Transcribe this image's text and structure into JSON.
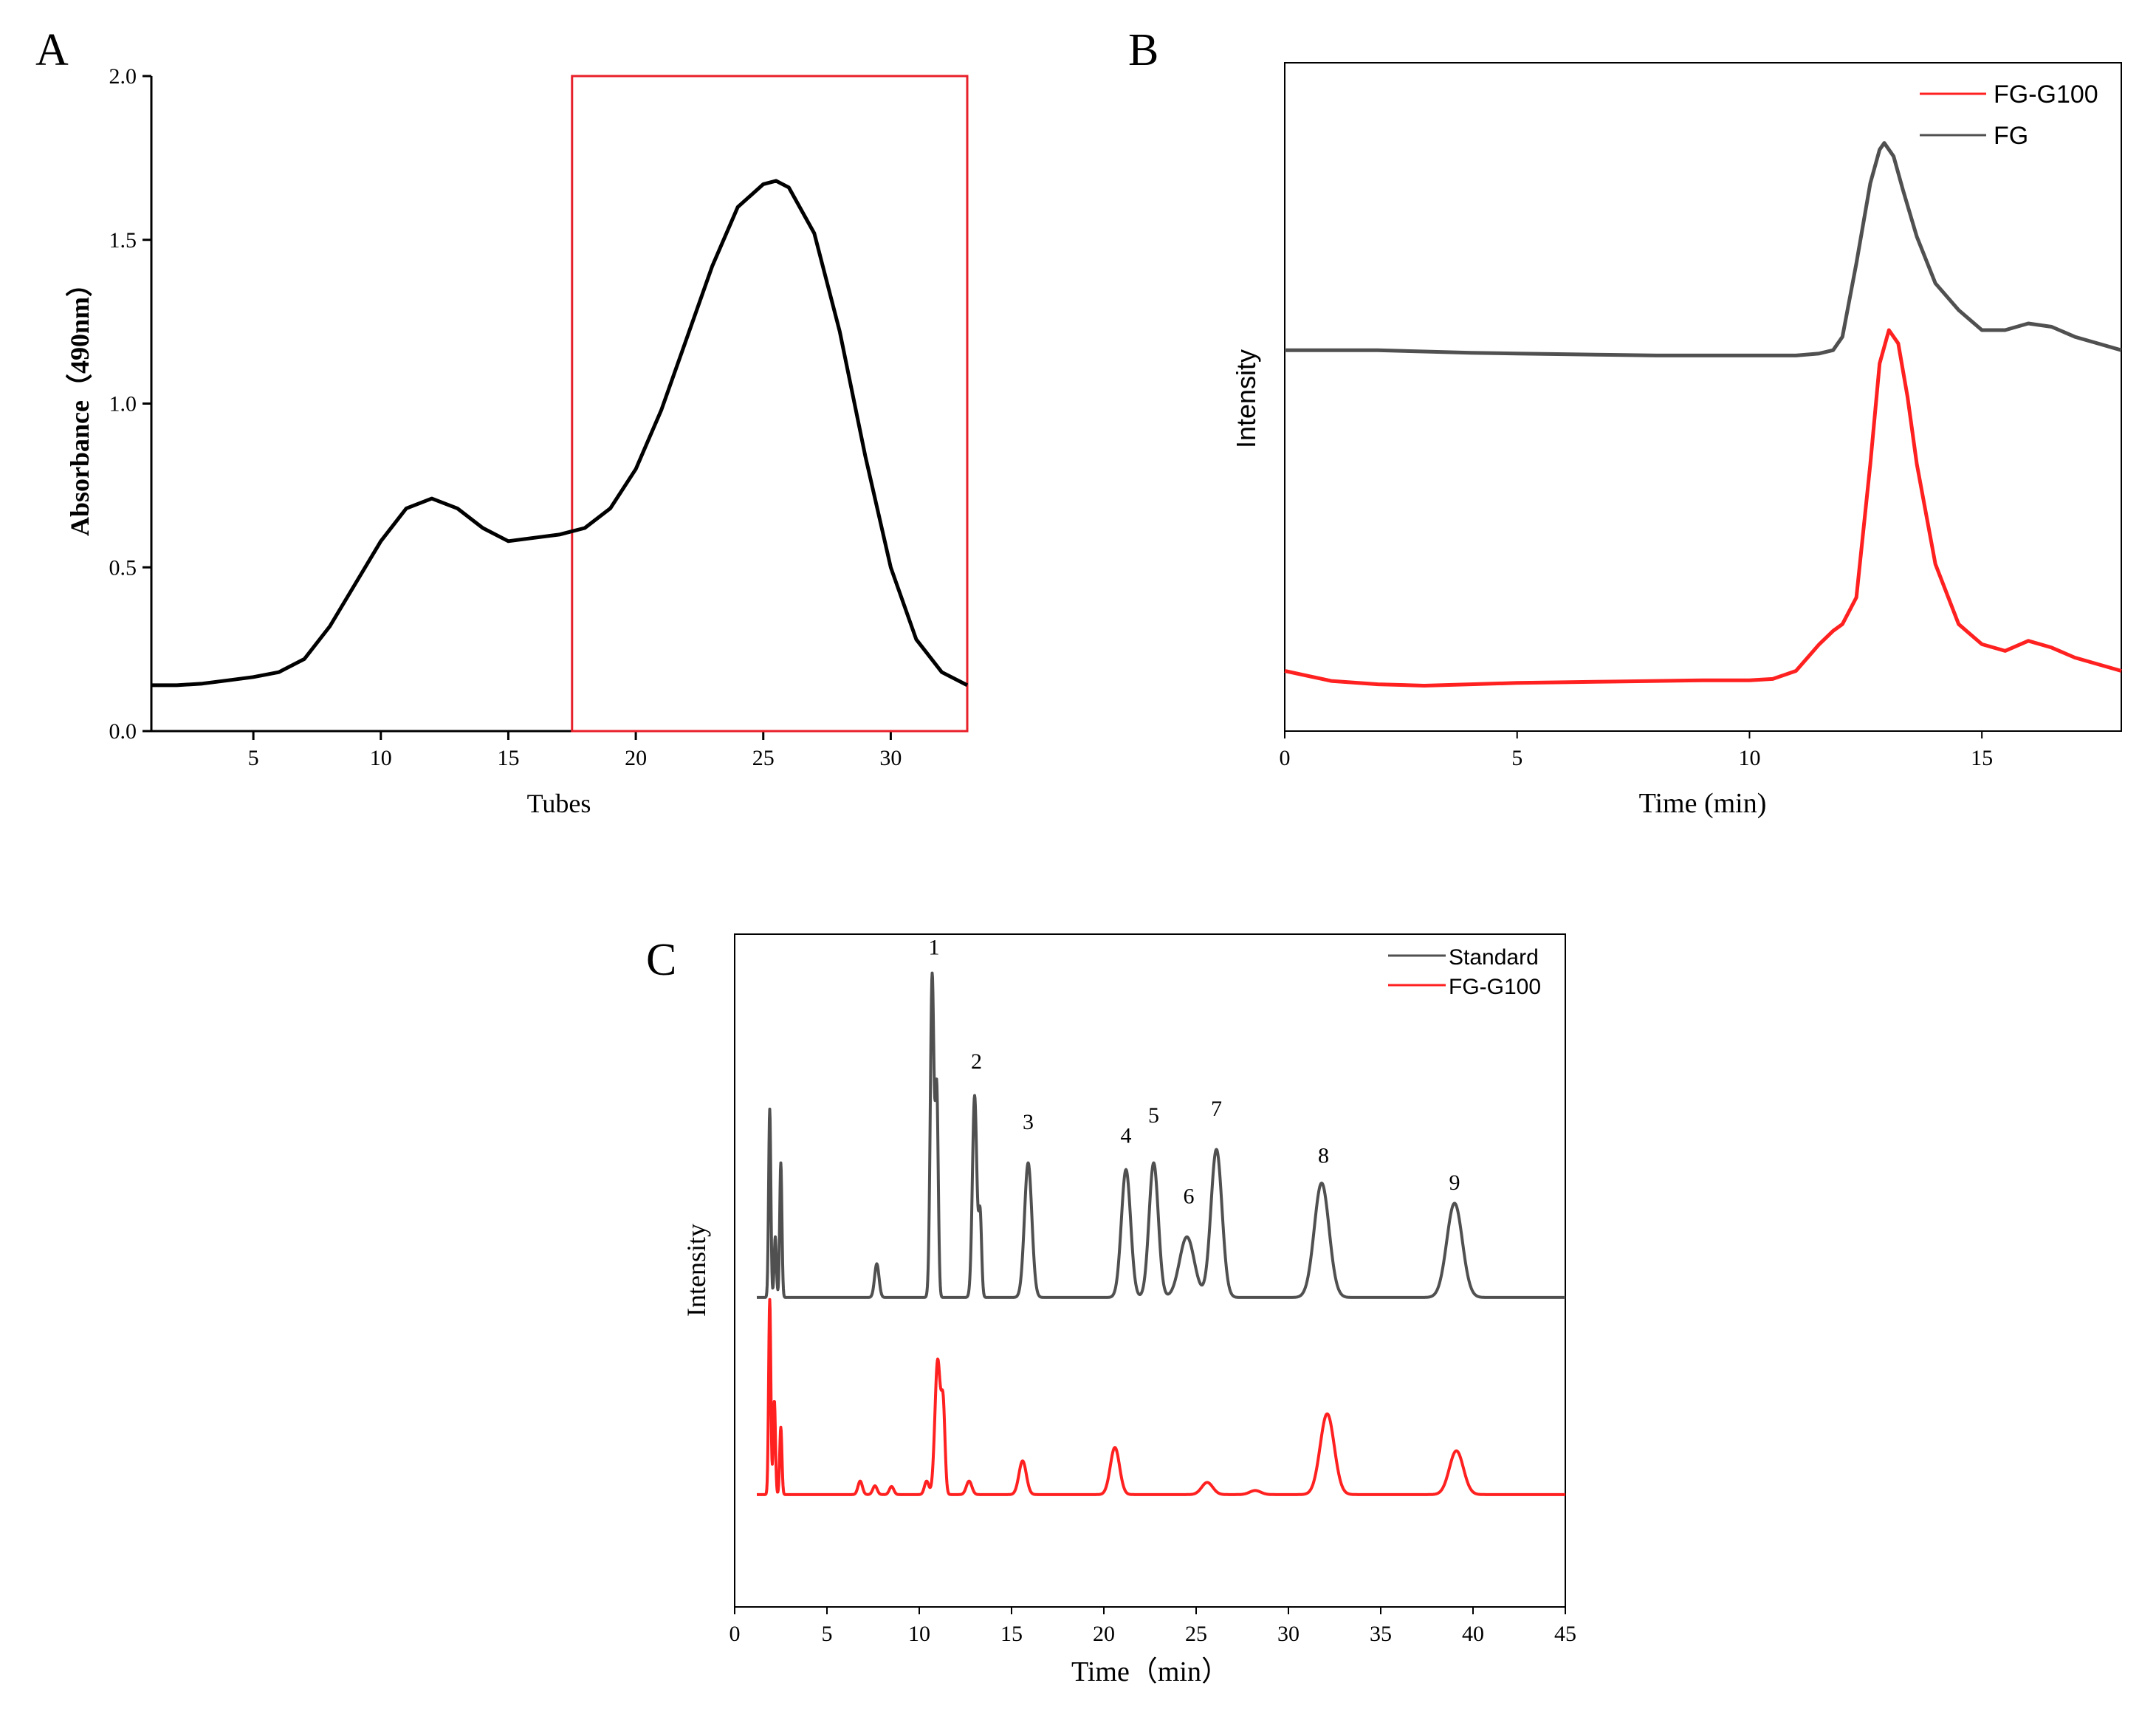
{
  "chart_data": [
    {
      "panel": "A",
      "type": "line",
      "xlabel": "Tubes",
      "ylabel": "Absorbance（490nm）",
      "xlim": [
        1,
        33
      ],
      "ylim": [
        0,
        2.0
      ],
      "xticks": [
        5,
        10,
        15,
        20,
        25,
        30
      ],
      "yticks": [
        "0.0",
        "0.5",
        "1.0",
        "1.5",
        "2.0"
      ],
      "series": [
        {
          "color": "#000000",
          "x": [
            1,
            2,
            3,
            4,
            5,
            6,
            7,
            8,
            9,
            10,
            11,
            12,
            13,
            14,
            15,
            16,
            17,
            18,
            19,
            20,
            21,
            22,
            23,
            24,
            25,
            25.5,
            26,
            27,
            28,
            29,
            30,
            31,
            32,
            33
          ],
          "y": [
            0.14,
            0.14,
            0.145,
            0.155,
            0.165,
            0.18,
            0.22,
            0.32,
            0.45,
            0.58,
            0.68,
            0.71,
            0.68,
            0.62,
            0.58,
            0.59,
            0.6,
            0.62,
            0.68,
            0.8,
            0.98,
            1.2,
            1.42,
            1.6,
            1.67,
            1.68,
            1.66,
            1.52,
            1.22,
            0.84,
            0.5,
            0.28,
            0.18,
            0.14
          ]
        }
      ],
      "highlight_box": {
        "x": [
          17.5,
          33
        ],
        "y": [
          0,
          2.0
        ],
        "color": "#e8202a"
      }
    },
    {
      "panel": "B",
      "type": "line",
      "xlabel": "Time (min)",
      "ylabel": "Intensity",
      "xlim": [
        0,
        18
      ],
      "ylim": [
        0,
        1
      ],
      "xticks": [
        0,
        5,
        10,
        15
      ],
      "y_tick_labels": false,
      "legend_position": "top-right",
      "series": [
        {
          "name": "FG-G100",
          "color": "#ff2020",
          "x": [
            0,
            1,
            2,
            3,
            4,
            5,
            6,
            7,
            8,
            9,
            10,
            10.5,
            11,
            11.5,
            11.8,
            12,
            12.3,
            12.6,
            12.8,
            13,
            13.2,
            13.4,
            13.6,
            14,
            14.5,
            15,
            15.5,
            16,
            16.5,
            17,
            17.5,
            18
          ],
          "y": [
            0.09,
            0.075,
            0.07,
            0.068,
            0.07,
            0.072,
            0.073,
            0.074,
            0.075,
            0.076,
            0.076,
            0.078,
            0.09,
            0.13,
            0.15,
            0.16,
            0.2,
            0.4,
            0.55,
            0.6,
            0.58,
            0.5,
            0.4,
            0.25,
            0.16,
            0.13,
            0.12,
            0.135,
            0.125,
            0.11,
            0.1,
            0.09
          ]
        },
        {
          "name": "FG",
          "color": "#505050",
          "x": [
            0,
            1,
            2,
            3,
            4,
            5,
            6,
            7,
            8,
            9,
            10,
            11,
            11.5,
            11.8,
            12,
            12.3,
            12.6,
            12.8,
            12.9,
            13.1,
            13.3,
            13.6,
            14,
            14.5,
            15,
            15.5,
            16,
            16.5,
            17,
            17.5,
            18
          ],
          "y": [
            0.57,
            0.57,
            0.57,
            0.568,
            0.566,
            0.565,
            0.564,
            0.563,
            0.562,
            0.562,
            0.562,
            0.562,
            0.565,
            0.57,
            0.59,
            0.7,
            0.82,
            0.87,
            0.88,
            0.86,
            0.81,
            0.74,
            0.67,
            0.63,
            0.6,
            0.6,
            0.61,
            0.605,
            0.59,
            0.58,
            0.57
          ]
        }
      ]
    },
    {
      "panel": "C",
      "type": "line",
      "xlabel": "Time（min）",
      "ylabel": "Intensity",
      "xlim": [
        0,
        45
      ],
      "ylim": [
        0,
        1
      ],
      "xticks": [
        0,
        5,
        10,
        15,
        20,
        25,
        30,
        35,
        40,
        45
      ],
      "y_tick_labels": false,
      "legend_position": "top-right",
      "peak_labels": [
        {
          "label": "1",
          "x": 10.8,
          "y": 0.97
        },
        {
          "label": "2",
          "x": 13.1,
          "y": 0.8
        },
        {
          "label": "3",
          "x": 15.9,
          "y": 0.71
        },
        {
          "label": "4",
          "x": 21.2,
          "y": 0.69
        },
        {
          "label": "5",
          "x": 22.7,
          "y": 0.72
        },
        {
          "label": "6",
          "x": 24.6,
          "y": 0.6
        },
        {
          "label": "7",
          "x": 26.1,
          "y": 0.73
        },
        {
          "label": "8",
          "x": 31.9,
          "y": 0.66
        },
        {
          "label": "9",
          "x": 39.0,
          "y": 0.62
        }
      ],
      "series": [
        {
          "name": "Standard",
          "color": "#505050",
          "baseline": 0.46,
          "peaks": [
            {
              "x": 1.9,
              "h": 0.28,
              "w": 0.06
            },
            {
              "x": 2.2,
              "h": 0.09,
              "w": 0.06
            },
            {
              "x": 2.5,
              "h": 0.2,
              "w": 0.06
            },
            {
              "x": 7.7,
              "h": 0.05,
              "w": 0.12
            },
            {
              "x": 10.7,
              "h": 0.48,
              "w": 0.1
            },
            {
              "x": 10.95,
              "h": 0.3,
              "w": 0.08
            },
            {
              "x": 13.0,
              "h": 0.3,
              "w": 0.12
            },
            {
              "x": 13.3,
              "h": 0.12,
              "w": 0.08
            },
            {
              "x": 15.9,
              "h": 0.2,
              "w": 0.2
            },
            {
              "x": 21.2,
              "h": 0.19,
              "w": 0.25
            },
            {
              "x": 22.7,
              "h": 0.2,
              "w": 0.25
            },
            {
              "x": 24.5,
              "h": 0.09,
              "w": 0.4
            },
            {
              "x": 26.1,
              "h": 0.22,
              "w": 0.3
            },
            {
              "x": 31.8,
              "h": 0.17,
              "w": 0.4
            },
            {
              "x": 39.0,
              "h": 0.14,
              "w": 0.42
            }
          ]
        },
        {
          "name": "FG-G100",
          "color": "#ff2020",
          "baseline": 0.167,
          "peaks": [
            {
              "x": 1.9,
              "h": 0.29,
              "w": 0.06
            },
            {
              "x": 2.15,
              "h": 0.14,
              "w": 0.06
            },
            {
              "x": 2.5,
              "h": 0.1,
              "w": 0.06
            },
            {
              "x": 6.8,
              "h": 0.02,
              "w": 0.12
            },
            {
              "x": 7.6,
              "h": 0.013,
              "w": 0.12
            },
            {
              "x": 8.5,
              "h": 0.012,
              "w": 0.12
            },
            {
              "x": 10.4,
              "h": 0.02,
              "w": 0.12
            },
            {
              "x": 11.0,
              "h": 0.2,
              "w": 0.15
            },
            {
              "x": 11.3,
              "h": 0.12,
              "w": 0.1
            },
            {
              "x": 12.7,
              "h": 0.02,
              "w": 0.15
            },
            {
              "x": 15.6,
              "h": 0.05,
              "w": 0.2
            },
            {
              "x": 20.6,
              "h": 0.07,
              "w": 0.25
            },
            {
              "x": 25.6,
              "h": 0.018,
              "w": 0.3
            },
            {
              "x": 28.2,
              "h": 0.006,
              "w": 0.3
            },
            {
              "x": 32.1,
              "h": 0.12,
              "w": 0.38
            },
            {
              "x": 39.1,
              "h": 0.065,
              "w": 0.38
            }
          ]
        }
      ]
    }
  ]
}
